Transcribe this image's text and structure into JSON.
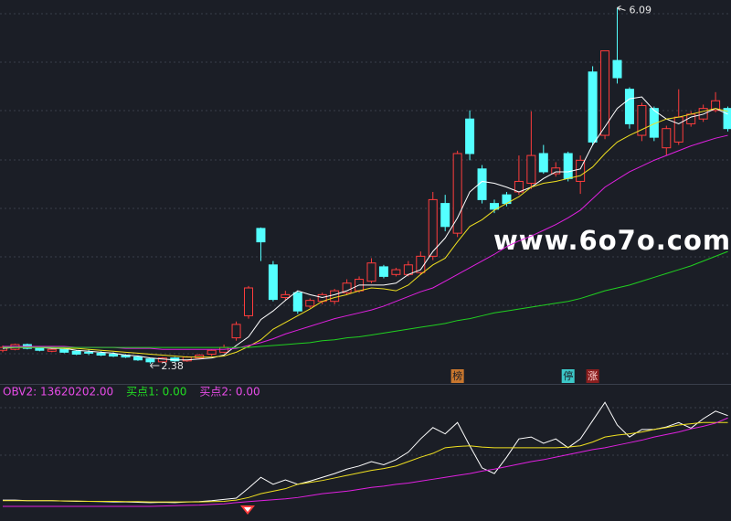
{
  "chart_data": [
    {
      "type": "candlestick",
      "up_color": "#ff3c3c",
      "down_color": "#54ffff",
      "ylim": [
        2.17,
        6.17
      ],
      "open": [
        2.52,
        2.53,
        2.58,
        2.55,
        2.51,
        2.53,
        2.51,
        2.5,
        2.49,
        2.48,
        2.47,
        2.45,
        2.43,
        2.4,
        2.44,
        2.41,
        2.44,
        2.48,
        2.5,
        2.65,
        2.88,
        3.79,
        3.41,
        3.07,
        3.12,
        2.98,
        3.03,
        3.03,
        3.12,
        3.14,
        3.24,
        3.39,
        3.31,
        3.31,
        3.33,
        3.5,
        4.05,
        3.74,
        4.93,
        4.41,
        4.05,
        4.14,
        4.17,
        4.26,
        4.57,
        4.36,
        4.57,
        4.28,
        5.42,
        4.76,
        5.54,
        5.24,
        4.76,
        5.04,
        4.63,
        4.69,
        4.88,
        4.93,
        5.02,
        5.04
      ],
      "high": [
        2.57,
        2.59,
        2.59,
        2.56,
        2.54,
        2.54,
        2.52,
        2.53,
        2.51,
        2.5,
        2.48,
        2.46,
        2.44,
        2.45,
        2.45,
        2.46,
        2.48,
        2.53,
        2.58,
        2.82,
        3.19,
        3.8,
        3.45,
        3.14,
        3.14,
        3.06,
        3.12,
        3.16,
        3.26,
        3.29,
        3.48,
        3.41,
        3.38,
        3.45,
        3.55,
        4.17,
        4.14,
        4.6,
        5.02,
        4.45,
        4.09,
        4.17,
        4.55,
        5.01,
        4.66,
        4.48,
        4.59,
        4.55,
        5.48,
        5.64,
        6.09,
        5.26,
        5.1,
        5.06,
        4.86,
        5.24,
        5.01,
        5.08,
        5.21,
        5.06
      ],
      "low": [
        2.5,
        2.52,
        2.53,
        2.51,
        2.5,
        2.49,
        2.47,
        2.47,
        2.46,
        2.45,
        2.44,
        2.41,
        2.38,
        2.39,
        2.4,
        2.4,
        2.43,
        2.46,
        2.49,
        2.62,
        2.85,
        3.45,
        3.03,
        3.04,
        2.9,
        2.96,
        3.0,
        3.0,
        3.1,
        3.12,
        3.22,
        3.27,
        3.29,
        3.29,
        3.31,
        3.46,
        3.76,
        3.7,
        4.5,
        4.05,
        3.95,
        4.02,
        4.14,
        4.2,
        4.36,
        4.33,
        4.28,
        4.15,
        4.66,
        4.72,
        5.3,
        4.83,
        4.7,
        4.7,
        4.55,
        4.66,
        4.85,
        4.9,
        5.0,
        4.8
      ],
      "close": [
        2.55,
        2.58,
        2.54,
        2.52,
        2.53,
        2.5,
        2.48,
        2.49,
        2.47,
        2.46,
        2.45,
        2.42,
        2.4,
        2.44,
        2.41,
        2.45,
        2.47,
        2.52,
        2.55,
        2.79,
        3.17,
        3.65,
        3.05,
        3.1,
        2.93,
        3.04,
        3.1,
        3.14,
        3.22,
        3.26,
        3.43,
        3.29,
        3.36,
        3.41,
        3.5,
        4.09,
        3.81,
        4.57,
        4.57,
        4.09,
        3.99,
        4.05,
        4.28,
        4.55,
        4.38,
        4.42,
        4.31,
        4.5,
        4.69,
        5.64,
        5.36,
        4.88,
        5.07,
        4.74,
        4.83,
        4.95,
        4.98,
        5.04,
        5.12,
        4.83
      ],
      "series": [
        {
          "color": "#ffffff",
          "values": [
            2.54,
            2.55,
            2.55,
            2.55,
            2.54,
            2.54,
            2.52,
            2.51,
            2.5,
            2.49,
            2.47,
            2.46,
            2.44,
            2.43,
            2.42,
            2.42,
            2.43,
            2.44,
            2.47,
            2.57,
            2.66,
            2.84,
            2.93,
            3.04,
            3.14,
            3.1,
            3.07,
            3.1,
            3.14,
            3.2,
            3.2,
            3.2,
            3.22,
            3.31,
            3.36,
            3.55,
            3.69,
            3.9,
            4.17,
            4.28,
            4.26,
            4.22,
            4.17,
            4.22,
            4.31,
            4.38,
            4.38,
            4.41,
            4.66,
            4.85,
            5.04,
            5.14,
            5.16,
            5.02,
            4.93,
            4.88,
            4.95,
            4.98,
            5.04,
            4.98
          ]
        },
        {
          "color": "#f0e020",
          "values": [
            2.55,
            2.55,
            2.55,
            2.55,
            2.55,
            2.54,
            2.54,
            2.53,
            2.52,
            2.51,
            2.5,
            2.49,
            2.48,
            2.47,
            2.46,
            2.45,
            2.45,
            2.45,
            2.46,
            2.5,
            2.56,
            2.63,
            2.74,
            2.81,
            2.88,
            2.95,
            3.03,
            3.07,
            3.1,
            3.14,
            3.17,
            3.16,
            3.14,
            3.2,
            3.31,
            3.41,
            3.48,
            3.65,
            3.81,
            3.88,
            3.98,
            4.05,
            4.12,
            4.22,
            4.26,
            4.28,
            4.31,
            4.34,
            4.43,
            4.57,
            4.69,
            4.76,
            4.82,
            4.88,
            4.93,
            4.95,
            4.98,
            5.01,
            5.04,
            5.01
          ]
        },
        {
          "color": "#e020e0",
          "values": [
            2.56,
            2.56,
            2.56,
            2.56,
            2.56,
            2.56,
            2.55,
            2.55,
            2.55,
            2.55,
            2.54,
            2.54,
            2.54,
            2.53,
            2.53,
            2.53,
            2.53,
            2.53,
            2.53,
            2.54,
            2.57,
            2.6,
            2.64,
            2.69,
            2.73,
            2.77,
            2.81,
            2.85,
            2.88,
            2.91,
            2.94,
            2.98,
            3.03,
            3.08,
            3.13,
            3.17,
            3.24,
            3.31,
            3.38,
            3.45,
            3.52,
            3.6,
            3.66,
            3.71,
            3.77,
            3.83,
            3.9,
            3.98,
            4.1,
            4.22,
            4.3,
            4.38,
            4.44,
            4.5,
            4.55,
            4.6,
            4.65,
            4.69,
            4.73,
            4.76
          ]
        },
        {
          "color": "#20d020",
          "values": [
            2.55,
            2.55,
            2.55,
            2.55,
            2.55,
            2.55,
            2.55,
            2.55,
            2.55,
            2.55,
            2.55,
            2.55,
            2.55,
            2.55,
            2.55,
            2.55,
            2.55,
            2.55,
            2.55,
            2.55,
            2.55,
            2.56,
            2.57,
            2.58,
            2.59,
            2.6,
            2.62,
            2.63,
            2.65,
            2.66,
            2.68,
            2.7,
            2.72,
            2.74,
            2.76,
            2.78,
            2.8,
            2.83,
            2.85,
            2.88,
            2.91,
            2.93,
            2.95,
            2.97,
            2.99,
            3.01,
            3.03,
            3.06,
            3.1,
            3.14,
            3.17,
            3.2,
            3.24,
            3.28,
            3.32,
            3.36,
            3.4,
            3.45,
            3.5,
            3.55
          ]
        }
      ],
      "badges": [
        null,
        null,
        null,
        null,
        null,
        null,
        null,
        null,
        null,
        null,
        null,
        null,
        null,
        null,
        null,
        null,
        null,
        null,
        null,
        null,
        null,
        null,
        null,
        null,
        null,
        null,
        null,
        null,
        null,
        null,
        null,
        null,
        null,
        null,
        null,
        null,
        null,
        {
          "label": "榜",
          "color": "#c9772e",
          "text_color": "#1b1e26"
        },
        null,
        null,
        null,
        null,
        null,
        null,
        null,
        null,
        {
          "label": "停",
          "color": "#3cc8c8",
          "text_color": "#1b1e26"
        },
        null,
        {
          "label": "涨",
          "color": "#8a1e1e",
          "text_color": "#ffd0d0"
        },
        null,
        null,
        null,
        null,
        null,
        null,
        null,
        null,
        null,
        null,
        null
      ],
      "watermark": "www.6o7o.com"
    },
    {
      "type": "line",
      "ylim": [
        -2000000,
        18300000
      ],
      "legend": [
        {
          "text": "OBV2: 13620202.00",
          "color": "#e84ce8"
        },
        {
          "text": "买点1: 0.00",
          "color": "#22dd22"
        },
        {
          "text": "买点2: 0.00",
          "color": "#e84ce8"
        }
      ],
      "series": [
        {
          "color": "#ffffff",
          "values": [
            600000,
            600000,
            500000,
            500000,
            500000,
            450000,
            400000,
            400000,
            350000,
            300000,
            300000,
            250000,
            200000,
            250000,
            200000,
            300000,
            350000,
            500000,
            700000,
            900000,
            2500000,
            4200000,
            3100000,
            3800000,
            3100000,
            3600000,
            4200000,
            4800000,
            5500000,
            6000000,
            6700000,
            6200000,
            7000000,
            8200000,
            10300000,
            12100000,
            11100000,
            12900000,
            9200000,
            5700000,
            4800000,
            7400000,
            10300000,
            10600000,
            9600000,
            10300000,
            8900000,
            10300000,
            13200000,
            16100000,
            12500000,
            10600000,
            11800000,
            11800000,
            12200000,
            12900000,
            12000000,
            13500000,
            14700000,
            14000000
          ]
        },
        {
          "color": "#f0e020",
          "values": [
            500000,
            500000,
            500000,
            500000,
            500000,
            450000,
            450000,
            400000,
            400000,
            400000,
            350000,
            350000,
            300000,
            300000,
            300000,
            300000,
            300000,
            350000,
            400000,
            600000,
            1000000,
            1600000,
            2000000,
            2400000,
            3100000,
            3400000,
            3700000,
            4100000,
            4500000,
            4900000,
            5300000,
            5600000,
            6000000,
            6700000,
            7400000,
            8000000,
            8900000,
            9100000,
            9200000,
            9000000,
            8900000,
            8900000,
            8900000,
            8900000,
            8900000,
            8900000,
            9000000,
            9200000,
            9800000,
            10600000,
            10900000,
            11100000,
            11400000,
            11800000,
            12100000,
            12500000,
            12700000,
            12900000,
            12900000,
            12900000
          ]
        },
        {
          "color": "#e020e0",
          "values": [
            -400000,
            -400000,
            -400000,
            -400000,
            -400000,
            -400000,
            -400000,
            -400000,
            -400000,
            -400000,
            -400000,
            -400000,
            -400000,
            -350000,
            -300000,
            -250000,
            -200000,
            -100000,
            0,
            200000,
            350000,
            500000,
            650000,
            800000,
            1000000,
            1300000,
            1600000,
            1800000,
            2000000,
            2300000,
            2600000,
            2800000,
            3100000,
            3300000,
            3600000,
            3900000,
            4200000,
            4500000,
            4800000,
            5200000,
            5500000,
            5900000,
            6300000,
            6700000,
            7000000,
            7400000,
            7800000,
            8200000,
            8600000,
            8900000,
            9300000,
            9700000,
            10100000,
            10600000,
            11000000,
            11400000,
            11900000,
            12300000,
            12800000,
            13620202
          ]
        }
      ]
    }
  ]
}
